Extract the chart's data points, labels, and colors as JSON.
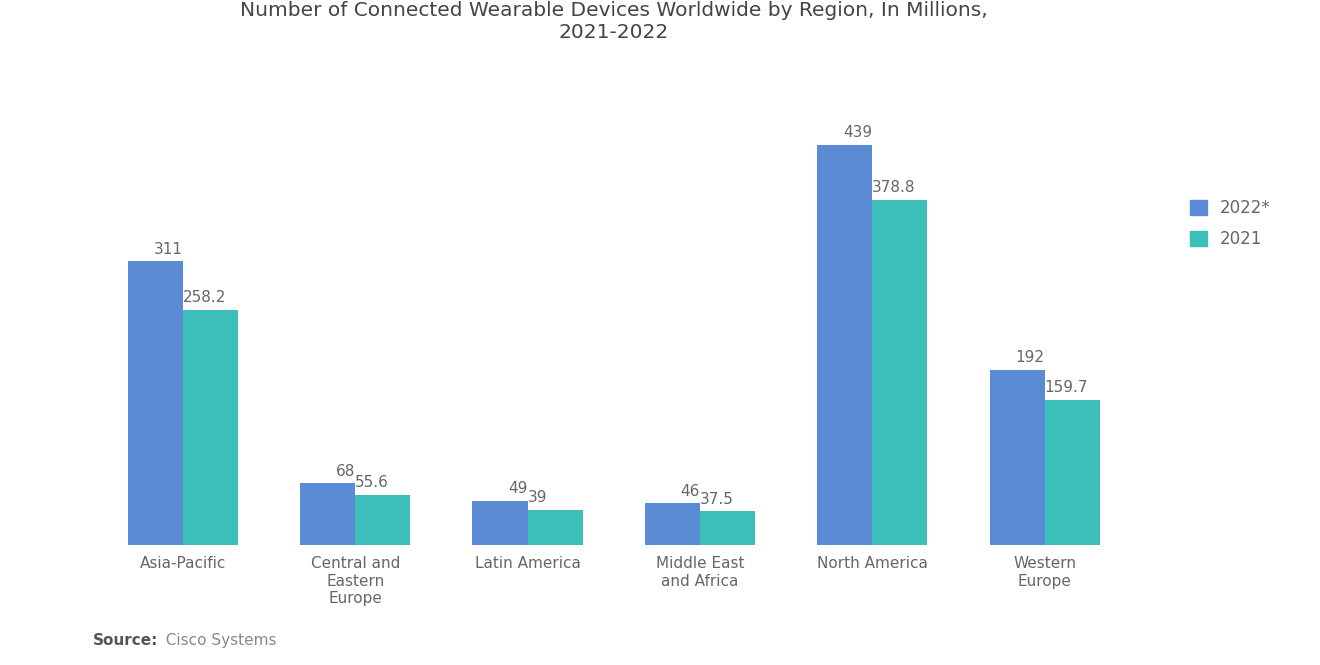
{
  "title": "Number of Connected Wearable Devices Worldwide by Region, In Millions,\n2021-2022",
  "categories": [
    "Asia-Pacific",
    "Central and\nEastern\nEurope",
    "Latin America",
    "Middle East\nand Africa",
    "North America",
    "Western\nEurope"
  ],
  "values_2022": [
    311,
    68,
    49,
    46,
    439,
    192
  ],
  "values_2021": [
    258.2,
    55.6,
    39,
    37.5,
    378.8,
    159.7
  ],
  "labels_2022": [
    "311",
    "68",
    "49",
    "46",
    "439",
    "192"
  ],
  "labels_2021": [
    "258.2",
    "55.6",
    "39",
    "37.5",
    "378.8",
    "159.7"
  ],
  "color_2022": "#5B8BD4",
  "color_2021": "#3BBFB8",
  "legend_labels": [
    "2022*",
    "2021"
  ],
  "source_bold": "Source:",
  "source_rest": "  Cisco Systems",
  "background_color": "#FFFFFF",
  "bar_width": 0.32,
  "ylim": [
    0,
    510
  ],
  "title_fontsize": 14.5,
  "label_fontsize": 11,
  "tick_fontsize": 11,
  "legend_fontsize": 12,
  "source_fontsize": 11
}
